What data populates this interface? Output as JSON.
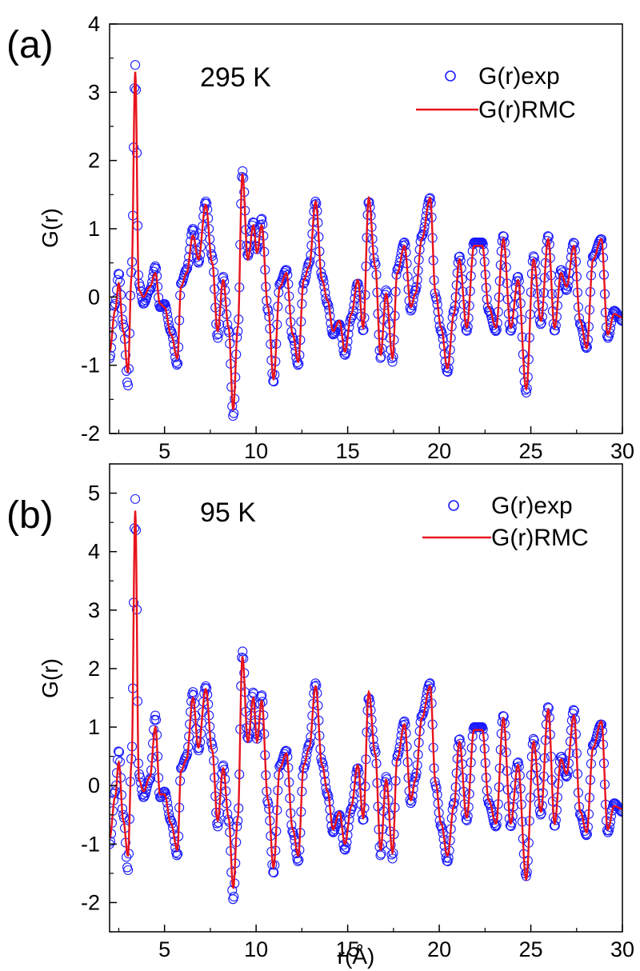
{
  "chart_data": [
    {
      "type": "line",
      "panel_label": "(a)",
      "annotation": "295 K",
      "xlabel": "",
      "ylabel": "G(r)",
      "xlim": [
        2,
        30
      ],
      "ylim": [
        -2,
        4
      ],
      "xticks": [
        5,
        10,
        15,
        20,
        25,
        30
      ],
      "yticks": [
        -2,
        -1,
        0,
        1,
        2,
        3,
        4
      ],
      "legend_position": "top-right",
      "colors": {
        "exp": "#1a1aff",
        "rmc": "#e8131b"
      },
      "series": [
        {
          "name": "G(r)exp",
          "style": "open-circles",
          "x": [
            2.0,
            2.3,
            2.5,
            2.75,
            3.0,
            3.2,
            3.4,
            3.6,
            3.85,
            4.2,
            4.5,
            4.75,
            5.0,
            5.35,
            5.7,
            5.9,
            6.2,
            6.55,
            6.85,
            7.25,
            7.6,
            7.9,
            8.2,
            8.5,
            8.75,
            9.0,
            9.25,
            9.55,
            9.85,
            10.05,
            10.3,
            10.65,
            10.95,
            11.3,
            11.65,
            12.0,
            12.3,
            12.6,
            12.9,
            13.25,
            13.6,
            13.9,
            14.2,
            14.55,
            14.85,
            15.2,
            15.55,
            15.85,
            16.15,
            16.5,
            16.8,
            17.1,
            17.45,
            17.7,
            18.1,
            18.45,
            18.7,
            19.05,
            19.5,
            19.8,
            20.1,
            20.45,
            20.8,
            21.1,
            21.5,
            21.9,
            22.35,
            22.7,
            23.1,
            23.5,
            23.9,
            24.3,
            24.75,
            25.15,
            25.55,
            25.95,
            26.3,
            26.65,
            26.95,
            27.35,
            27.7,
            28.05,
            28.4,
            28.85,
            29.2,
            29.55,
            30.0
          ],
          "y": [
            -0.9,
            -0.1,
            0.35,
            -0.4,
            -1.3,
            0.4,
            3.4,
            0.2,
            -0.1,
            0.1,
            0.45,
            -0.15,
            -0.1,
            -0.5,
            -1.0,
            0.2,
            0.4,
            1.0,
            0.5,
            1.4,
            0.6,
            -0.6,
            0.3,
            -0.5,
            -1.75,
            -0.5,
            1.85,
            0.6,
            1.1,
            0.7,
            1.15,
            -0.2,
            -1.25,
            0.2,
            0.4,
            -0.6,
            -1.0,
            0.2,
            0.5,
            1.4,
            0.3,
            -0.1,
            -0.55,
            -0.4,
            -0.85,
            -0.3,
            0.2,
            -0.5,
            1.4,
            0.5,
            -0.9,
            0.1,
            -0.95,
            0.4,
            0.8,
            -0.2,
            0.1,
            0.9,
            1.45,
            0.0,
            -0.5,
            -1.1,
            -0.2,
            0.6,
            -0.5,
            0.8,
            0.8,
            -0.2,
            -0.5,
            0.9,
            -0.5,
            0.3,
            -1.4,
            0.6,
            -0.4,
            0.9,
            -0.5,
            0.4,
            0.1,
            0.8,
            -0.4,
            -0.75,
            0.6,
            0.85,
            -0.6,
            -0.2,
            -0.35
          ]
        },
        {
          "name": "G(r)RMC",
          "style": "line",
          "x": [
            2.0,
            2.3,
            2.5,
            2.75,
            3.0,
            3.2,
            3.4,
            3.6,
            3.85,
            4.2,
            4.5,
            4.75,
            5.0,
            5.35,
            5.7,
            5.9,
            6.2,
            6.55,
            6.85,
            7.25,
            7.6,
            7.9,
            8.2,
            8.5,
            8.75,
            9.0,
            9.25,
            9.55,
            9.85,
            10.05,
            10.3,
            10.65,
            10.95,
            11.3,
            11.65,
            12.0,
            12.3,
            12.6,
            12.9,
            13.25,
            13.6,
            13.9,
            14.2,
            14.55,
            14.85,
            15.2,
            15.55,
            15.85,
            16.15,
            16.5,
            16.8,
            17.1,
            17.45,
            17.7,
            18.1,
            18.45,
            18.7,
            19.05,
            19.5,
            19.8,
            20.1,
            20.45,
            20.8,
            21.1,
            21.5,
            21.9,
            22.35,
            22.7,
            23.1,
            23.5,
            23.9,
            24.3,
            24.75,
            25.15,
            25.55,
            25.95,
            26.3,
            26.65,
            26.95,
            27.35,
            27.7,
            28.05,
            28.4,
            28.85,
            29.2,
            29.55,
            30.0
          ],
          "y": [
            -0.8,
            -0.2,
            0.2,
            -0.5,
            -1.1,
            0.3,
            3.3,
            0.1,
            0.0,
            0.15,
            0.35,
            -0.1,
            -0.15,
            -0.55,
            -0.9,
            0.15,
            0.35,
            0.9,
            0.55,
            1.35,
            0.5,
            -0.5,
            0.25,
            -0.45,
            -1.65,
            -0.45,
            1.8,
            0.55,
            1.05,
            0.65,
            1.05,
            -0.15,
            -1.2,
            0.15,
            0.35,
            -0.55,
            -0.95,
            0.25,
            0.45,
            1.4,
            0.25,
            -0.05,
            -0.5,
            -0.35,
            -0.8,
            -0.25,
            0.25,
            -0.45,
            1.45,
            0.45,
            -0.85,
            0.05,
            -0.9,
            0.35,
            0.75,
            -0.15,
            0.05,
            0.85,
            1.45,
            0.05,
            -0.45,
            -1.05,
            -0.25,
            0.55,
            -0.45,
            0.75,
            0.75,
            -0.15,
            -0.45,
            0.85,
            -0.45,
            0.25,
            -1.35,
            0.55,
            -0.35,
            0.85,
            -0.45,
            0.35,
            0.15,
            0.75,
            -0.35,
            -0.75,
            0.55,
            0.85,
            -0.55,
            -0.25,
            -0.3
          ]
        }
      ]
    },
    {
      "type": "line",
      "panel_label": "(b)",
      "annotation": "95 K",
      "xlabel": "r(Å)",
      "ylabel": "G(r)",
      "xlim": [
        2,
        30
      ],
      "ylim": [
        -2.5,
        5.5
      ],
      "xticks": [
        5,
        10,
        15,
        20,
        25,
        30
      ],
      "yticks": [
        -2,
        -1,
        0,
        1,
        2,
        3,
        4,
        5
      ],
      "legend_position": "top-right",
      "colors": {
        "exp": "#1a1aff",
        "rmc": "#e8131b"
      },
      "series": [
        {
          "name": "G(r)exp",
          "style": "open-circles",
          "x": [
            2.0,
            2.3,
            2.5,
            2.75,
            3.0,
            3.2,
            3.4,
            3.6,
            3.85,
            4.2,
            4.5,
            4.75,
            5.0,
            5.35,
            5.7,
            5.9,
            6.2,
            6.55,
            6.85,
            7.25,
            7.6,
            7.9,
            8.2,
            8.5,
            8.75,
            9.0,
            9.25,
            9.55,
            9.85,
            10.05,
            10.3,
            10.65,
            10.95,
            11.3,
            11.65,
            12.0,
            12.3,
            12.6,
            12.9,
            13.25,
            13.6,
            13.9,
            14.2,
            14.55,
            14.85,
            15.2,
            15.55,
            15.85,
            16.15,
            16.5,
            16.8,
            17.1,
            17.45,
            17.7,
            18.1,
            18.45,
            18.7,
            19.05,
            19.5,
            19.8,
            20.1,
            20.45,
            20.8,
            21.1,
            21.5,
            21.9,
            22.35,
            22.7,
            23.1,
            23.5,
            23.9,
            24.3,
            24.75,
            25.15,
            25.55,
            25.95,
            26.3,
            26.65,
            26.95,
            27.35,
            27.7,
            28.05,
            28.4,
            28.85,
            29.2,
            29.55,
            30.0
          ],
          "y": [
            -1.0,
            -0.1,
            0.6,
            -0.5,
            -1.45,
            0.5,
            4.9,
            0.2,
            -0.2,
            0.1,
            1.2,
            -0.2,
            -0.1,
            -0.6,
            -1.2,
            0.3,
            0.5,
            1.6,
            0.6,
            1.7,
            0.7,
            -0.7,
            0.35,
            -0.6,
            -1.95,
            -0.6,
            2.3,
            0.8,
            1.6,
            0.8,
            1.55,
            -0.3,
            -1.5,
            0.35,
            0.6,
            -0.8,
            -1.3,
            0.3,
            0.7,
            1.75,
            0.4,
            -0.15,
            -0.8,
            -0.5,
            -1.1,
            -0.4,
            0.3,
            -0.6,
            1.5,
            0.6,
            -1.2,
            0.15,
            -1.25,
            0.5,
            1.1,
            -0.3,
            0.15,
            1.2,
            1.75,
            0.0,
            -0.7,
            -1.3,
            -0.3,
            0.8,
            -0.6,
            1.0,
            1.0,
            -0.3,
            -0.7,
            1.2,
            -0.7,
            0.4,
            -1.55,
            0.8,
            -0.5,
            1.35,
            -0.7,
            0.5,
            0.15,
            1.3,
            -0.5,
            -0.85,
            0.7,
            1.05,
            -0.8,
            -0.3,
            -0.45
          ]
        },
        {
          "name": "G(r)RMC",
          "style": "line",
          "x": [
            2.0,
            2.3,
            2.5,
            2.75,
            3.0,
            3.2,
            3.4,
            3.6,
            3.85,
            4.2,
            4.5,
            4.75,
            5.0,
            5.35,
            5.7,
            5.9,
            6.2,
            6.55,
            6.85,
            7.25,
            7.6,
            7.9,
            8.2,
            8.5,
            8.75,
            9.0,
            9.25,
            9.55,
            9.85,
            10.05,
            10.3,
            10.65,
            10.95,
            11.3,
            11.65,
            12.0,
            12.3,
            12.6,
            12.9,
            13.25,
            13.6,
            13.9,
            14.2,
            14.55,
            14.85,
            15.2,
            15.55,
            15.85,
            16.15,
            16.5,
            16.8,
            17.1,
            17.45,
            17.7,
            18.1,
            18.45,
            18.7,
            19.05,
            19.5,
            19.8,
            20.1,
            20.45,
            20.8,
            21.1,
            21.5,
            21.9,
            22.35,
            22.7,
            23.1,
            23.5,
            23.9,
            24.3,
            24.75,
            25.15,
            25.55,
            25.95,
            26.3,
            26.65,
            26.95,
            27.35,
            27.7,
            28.05,
            28.4,
            28.85,
            29.2,
            29.55,
            30.0
          ],
          "y": [
            -0.9,
            -0.2,
            0.4,
            -0.6,
            -1.2,
            0.4,
            4.7,
            0.1,
            -0.1,
            0.15,
            1.0,
            -0.15,
            -0.15,
            -0.65,
            -1.1,
            0.25,
            0.45,
            1.5,
            0.65,
            1.65,
            0.6,
            -0.6,
            0.3,
            -0.55,
            -1.75,
            -0.55,
            2.2,
            0.75,
            1.5,
            0.75,
            1.45,
            -0.25,
            -1.4,
            0.3,
            0.55,
            -0.75,
            -1.2,
            0.35,
            0.65,
            1.7,
            0.35,
            -0.1,
            -0.75,
            -0.45,
            -1.0,
            -0.35,
            0.35,
            -0.55,
            1.6,
            0.55,
            -1.1,
            0.1,
            -1.15,
            0.45,
            1.05,
            -0.25,
            0.1,
            1.15,
            1.7,
            0.05,
            -0.65,
            -1.2,
            -0.35,
            0.75,
            -0.55,
            0.95,
            0.95,
            -0.25,
            -0.65,
            1.15,
            -0.65,
            0.35,
            -1.6,
            0.75,
            -0.45,
            1.3,
            -0.65,
            0.45,
            0.2,
            1.2,
            -0.45,
            -0.8,
            0.65,
            1.1,
            -0.75,
            -0.35,
            -0.4
          ]
        }
      ]
    }
  ]
}
